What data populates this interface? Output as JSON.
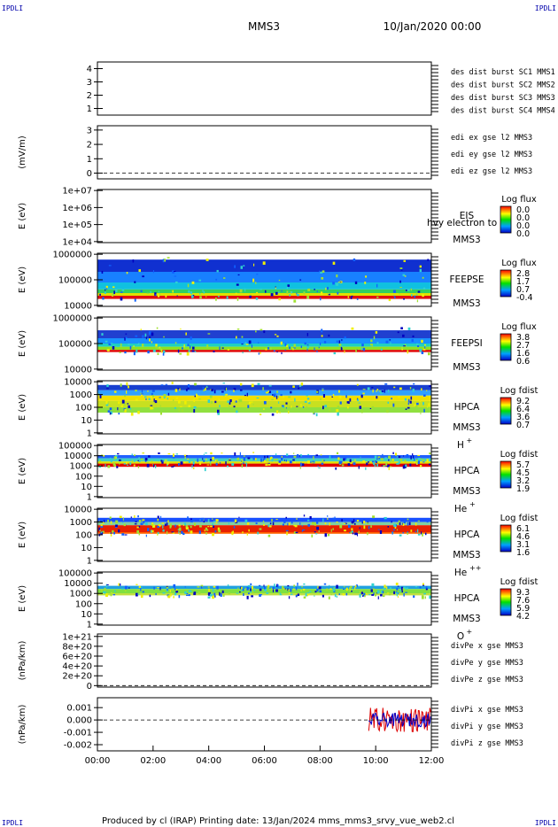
{
  "header": {
    "corner_left": "IPDLI",
    "corner_right": "IPDLI",
    "spacecraft": "MMS3",
    "datetime": "10/Jan/2020 00:00"
  },
  "footer": {
    "corner_left": "IPDLI",
    "corner_right": "IPDLI",
    "credit": "Produced by cl (IRAP)   Printing date: 13/Jan/2024   mms_mms3_srvy_vue_web2.cl"
  },
  "colors": {
    "mms1": "#0000cc",
    "mms2": "#cc00cc",
    "mms3": "#dd0000",
    "mms4": "#00bb00",
    "x": "#dd0000",
    "y": "#00bb00",
    "z": "#0000cc"
  },
  "chart_data": {
    "type": "multi-panel time series",
    "xlim": [
      "00:00",
      "12:00"
    ],
    "x_ticks": [
      "00:00",
      "02:00",
      "04:00",
      "06:00",
      "08:00",
      "10:00",
      "12:00"
    ],
    "panels": [
      {
        "id": "burst",
        "type": "line",
        "ylabel": "",
        "ylim": [
          0.5,
          4.5
        ],
        "y_ticks": [
          "1",
          "2",
          "3",
          "4"
        ],
        "legend": [
          {
            "text": "des dist burst SC1 MMS1",
            "color": "#0000cc"
          },
          {
            "text": "des dist burst SC2 MMS2",
            "color": "#cc00cc"
          },
          {
            "text": "des dist burst SC3 MMS3",
            "color": "#dd0000"
          },
          {
            "text": "des dist burst SC4 MMS4",
            "color": "#00bb00"
          }
        ]
      },
      {
        "id": "edi",
        "type": "line",
        "ylabel": "(mV/m)",
        "ylim": [
          -0.4,
          3.3
        ],
        "y_ticks": [
          "0",
          "1",
          "2",
          "3"
        ],
        "zero_line": true,
        "legend": [
          {
            "text": "edi ex gse l2 MMS3",
            "color": "#dd0000"
          },
          {
            "text": "edi ey gse l2 MMS3",
            "color": "#00bb00"
          },
          {
            "text": "edi ez gse l2 MMS3",
            "color": "#0000cc"
          }
        ]
      },
      {
        "id": "eis",
        "type": "heatmap",
        "ylabel": "E (eV)",
        "yscale": "log",
        "y_ticks": [
          "1e+04",
          "1e+05",
          "1e+06",
          "1e+07"
        ],
        "instrument": [
          "EIS",
          "MMS3"
        ],
        "overlay_text": "hvy electron to",
        "cbar_title": "Log flux",
        "cbar_ticks": [
          "0.0",
          "0.0",
          "0.0",
          "0.0"
        ],
        "data_extent": null
      },
      {
        "id": "feepse",
        "type": "heatmap",
        "ylabel": "E (eV)",
        "yscale": "log",
        "y_ticks": [
          "10000",
          "100000",
          "1000000"
        ],
        "instrument": [
          "FEEPSE",
          "MMS3"
        ],
        "cbar_title": "Log flux",
        "cbar_ticks": [
          "2.8",
          "1.7",
          "0.7",
          "-0.4"
        ],
        "data_extent": [
          "00:00",
          "12:00"
        ]
      },
      {
        "id": "feepsi",
        "type": "heatmap",
        "ylabel": "E (eV)",
        "yscale": "log",
        "y_ticks": [
          "10000",
          "100000",
          "1000000"
        ],
        "instrument": [
          "FEEPSI",
          "MMS3"
        ],
        "cbar_title": "Log flux",
        "cbar_ticks": [
          "3.8",
          "2.7",
          "1.6",
          "0.6"
        ],
        "data_extent": [
          "00:00",
          "12:00"
        ]
      },
      {
        "id": "hpca_h",
        "type": "heatmap",
        "ylabel": "E (eV)",
        "yscale": "log",
        "y_ticks": [
          "1",
          "10",
          "100",
          "1000",
          "10000"
        ],
        "instrument": [
          "HPCA",
          "MMS3"
        ],
        "species": "H",
        "charge": "+",
        "cbar_title": "Log fdist",
        "cbar_ticks": [
          "9.2",
          "6.4",
          "3.6",
          "0.7"
        ],
        "data_extent": [
          "00:00",
          "12:00"
        ]
      },
      {
        "id": "hpca_he1",
        "type": "heatmap",
        "ylabel": "E (eV)",
        "yscale": "log",
        "y_ticks": [
          "1",
          "10",
          "100",
          "1000",
          "10000",
          "100000"
        ],
        "instrument": [
          "HPCA",
          "MMS3"
        ],
        "species": "He",
        "charge": "+",
        "cbar_title": "Log fdist",
        "cbar_ticks": [
          "5.7",
          "4.5",
          "3.2",
          "1.9"
        ],
        "data_extent": [
          "00:00",
          "12:00"
        ]
      },
      {
        "id": "hpca_he2",
        "type": "heatmap",
        "ylabel": "E (eV)",
        "yscale": "log",
        "y_ticks": [
          "1",
          "10",
          "100",
          "1000",
          "10000"
        ],
        "instrument": [
          "HPCA",
          "MMS3"
        ],
        "species": "He",
        "charge": "++",
        "cbar_title": "Log fdist",
        "cbar_ticks": [
          "6.1",
          "4.6",
          "3.1",
          "1.6"
        ],
        "data_extent": [
          "00:00",
          "12:00"
        ]
      },
      {
        "id": "hpca_o",
        "type": "heatmap",
        "ylabel": "E (eV)",
        "yscale": "log",
        "y_ticks": [
          "1",
          "10",
          "100",
          "1000",
          "10000",
          "100000"
        ],
        "instrument": [
          "HPCA",
          "MMS3"
        ],
        "species": "O",
        "charge": "+",
        "cbar_title": "Log fdist",
        "cbar_ticks": [
          "9.3",
          "7.6",
          "5.9",
          "4.2"
        ],
        "data_extent": [
          "00:00",
          "12:00"
        ]
      },
      {
        "id": "divpe",
        "type": "line",
        "ylabel": "(nPa/km)",
        "ylim": [
          -3e+19,
          1.05e+21
        ],
        "y_ticks": [
          "0",
          "2e+20",
          "4e+20",
          "6e+20",
          "8e+20",
          "1e+21"
        ],
        "zero_line": true,
        "legend": [
          {
            "text": "divPe x gse MMS3",
            "color": "#dd0000"
          },
          {
            "text": "divPe y gse MMS3",
            "color": "#00bb00"
          },
          {
            "text": "divPe z gse MMS3",
            "color": "#0000cc"
          }
        ]
      },
      {
        "id": "divpi",
        "type": "line",
        "ylabel": "(nPa/km)",
        "ylim": [
          -0.0025,
          0.0018
        ],
        "y_ticks": [
          "-0.002",
          "-0.001",
          "0.000",
          "0.001"
        ],
        "zero_line": true,
        "data_extent": [
          "09:45",
          "12:00"
        ],
        "amplitude": 0.001,
        "legend": [
          {
            "text": "divPi x gse MMS3",
            "color": "#dd0000"
          },
          {
            "text": "divPi y gse MMS3",
            "color": "#00bb00"
          },
          {
            "text": "divPi z gse MMS3",
            "color": "#0000cc"
          }
        ]
      }
    ]
  }
}
